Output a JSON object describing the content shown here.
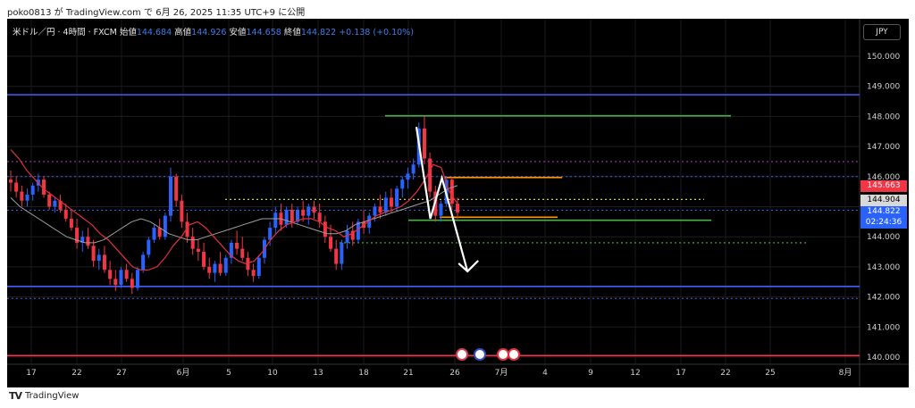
{
  "header": {
    "text": "poko0813 が TradingView.com で 6月 26, 2025 11:35 UTC+9 に公開"
  },
  "legend": {
    "symbol": "米ドル／円 · 4時間 · FXCM",
    "open_label": "始値",
    "open": "144.684",
    "high_label": "高値",
    "high": "144.926",
    "low_label": "安値",
    "low": "144.658",
    "close_label": "終値",
    "close": "144.822",
    "change": "+0.138 (+0.10%)"
  },
  "currency_button": "JPY",
  "footer": {
    "brand": "TradingView",
    "logo": "TV"
  },
  "colors": {
    "up": "#2962ff",
    "down": "#f23645",
    "background": "#000000",
    "blue_line": "#3f5fff",
    "green_line": "#4caf50",
    "orange_line": "#ff9800"
  },
  "price_tags": [
    {
      "value": "145.663",
      "bg": "#f23645"
    },
    {
      "value": "144.904",
      "bg": "#d9d9d9",
      "fg": "#000000"
    },
    {
      "value": "144.822",
      "bg": "#2962ff"
    },
    {
      "value": "02:24:36",
      "bg": "#2962ff"
    }
  ],
  "chart_data": {
    "type": "candlestick",
    "y_ticks": [
      "150.000",
      "149.000",
      "148.000",
      "147.000",
      "146.000",
      "145.000",
      "144.000",
      "143.000",
      "142.000",
      "141.000",
      "140.000"
    ],
    "ylim": [
      140,
      150.5
    ],
    "x_ticks": [
      "17",
      "22",
      "27",
      "6月",
      "5",
      "10",
      "13",
      "18",
      "21",
      "26",
      "7月",
      "4",
      "9",
      "12",
      "17",
      "22",
      "25",
      "8月"
    ],
    "grid": true,
    "horizontal_levels": [
      {
        "price": 148.72,
        "color": "#3f5fff",
        "style": "solid"
      },
      {
        "price": 142.35,
        "color": "#3f5fff",
        "style": "solid"
      },
      {
        "price": 146.0,
        "color": "#3f5fff",
        "style": "dotted"
      },
      {
        "price": 141.95,
        "color": "#3f5fff",
        "style": "dotted"
      },
      {
        "price": 146.5,
        "color": "#b040c0",
        "style": "dotted"
      },
      {
        "price": 144.88,
        "color": "#2962ff",
        "style": "dotted"
      },
      {
        "price": 140.05,
        "color": "#f23645",
        "style": "solid"
      }
    ],
    "segments": [
      {
        "x1": 431,
        "x2": 818,
        "price": 148.02,
        "color": "#4caf50",
        "style": "solid"
      },
      {
        "x1": 457,
        "x2": 796,
        "price": 144.55,
        "color": "#4caf50",
        "style": "solid"
      },
      {
        "x1": 497,
        "x2": 629,
        "price": 145.97,
        "color": "#ff9800",
        "style": "solid"
      },
      {
        "x1": 492,
        "x2": 624,
        "price": 144.65,
        "color": "#ff9800",
        "style": "solid"
      },
      {
        "x1": 252,
        "x2": 788,
        "price": 145.24,
        "color": "#c8d040",
        "style": "dotted"
      },
      {
        "x1": 380,
        "x2": 905,
        "price": 143.8,
        "color": "#4caf50",
        "style": "dotted"
      }
    ],
    "candles": [
      [
        145.9,
        146.2,
        145.5,
        145.8
      ],
      [
        145.8,
        146.0,
        145.3,
        145.5
      ],
      [
        145.5,
        145.7,
        145.0,
        145.2
      ],
      [
        145.2,
        145.6,
        145.0,
        145.4
      ],
      [
        145.4,
        145.8,
        145.2,
        145.7
      ],
      [
        145.7,
        146.1,
        145.5,
        145.9
      ],
      [
        145.9,
        146.0,
        145.3,
        145.4
      ],
      [
        145.4,
        145.5,
        144.9,
        145.0
      ],
      [
        145.0,
        145.3,
        144.8,
        145.2
      ],
      [
        145.2,
        145.4,
        144.8,
        144.9
      ],
      [
        144.9,
        145.1,
        144.5,
        144.6
      ],
      [
        144.6,
        144.9,
        144.2,
        144.3
      ],
      [
        144.3,
        144.6,
        143.6,
        143.8
      ],
      [
        143.8,
        144.2,
        143.5,
        144.0
      ],
      [
        144.0,
        144.3,
        143.6,
        143.7
      ],
      [
        143.7,
        143.9,
        143.0,
        143.2
      ],
      [
        143.2,
        143.6,
        142.9,
        143.4
      ],
      [
        143.4,
        143.7,
        142.8,
        142.9
      ],
      [
        142.9,
        143.2,
        142.4,
        142.6
      ],
      [
        142.6,
        142.9,
        142.2,
        142.4
      ],
      [
        142.4,
        143.0,
        142.3,
        142.9
      ],
      [
        142.9,
        143.1,
        142.5,
        142.6
      ],
      [
        142.6,
        142.8,
        142.1,
        142.3
      ],
      [
        142.3,
        143.0,
        142.2,
        142.9
      ],
      [
        142.9,
        143.5,
        142.8,
        143.4
      ],
      [
        143.4,
        144.0,
        143.3,
        143.9
      ],
      [
        143.9,
        144.4,
        143.8,
        144.3
      ],
      [
        144.3,
        144.6,
        143.9,
        144.0
      ],
      [
        144.0,
        144.8,
        143.9,
        144.7
      ],
      [
        144.7,
        146.3,
        144.5,
        146.0
      ],
      [
        146.0,
        146.1,
        145.0,
        145.2
      ],
      [
        145.2,
        145.4,
        144.3,
        144.5
      ],
      [
        144.5,
        144.8,
        143.8,
        144.0
      ],
      [
        144.0,
        144.3,
        143.4,
        143.6
      ],
      [
        143.6,
        143.9,
        143.2,
        143.5
      ],
      [
        143.5,
        143.8,
        142.9,
        143.0
      ],
      [
        143.0,
        143.3,
        142.6,
        142.8
      ],
      [
        142.8,
        143.2,
        142.5,
        143.1
      ],
      [
        143.1,
        143.5,
        142.7,
        142.8
      ],
      [
        142.8,
        143.4,
        142.7,
        143.3
      ],
      [
        143.3,
        143.9,
        143.1,
        143.8
      ],
      [
        143.8,
        144.2,
        143.4,
        143.6
      ],
      [
        143.6,
        144.0,
        143.2,
        143.3
      ],
      [
        143.3,
        143.5,
        142.7,
        142.9
      ],
      [
        142.9,
        143.1,
        142.5,
        142.7
      ],
      [
        142.7,
        143.4,
        142.6,
        143.3
      ],
      [
        143.3,
        144.0,
        143.1,
        143.9
      ],
      [
        143.9,
        144.5,
        143.7,
        144.3
      ],
      [
        144.3,
        145.0,
        144.1,
        144.8
      ],
      [
        144.8,
        145.1,
        144.2,
        144.4
      ],
      [
        144.4,
        145.0,
        144.3,
        144.9
      ],
      [
        144.9,
        145.1,
        144.3,
        144.5
      ],
      [
        144.5,
        145.0,
        144.4,
        144.9
      ],
      [
        144.9,
        145.2,
        144.5,
        144.7
      ],
      [
        144.7,
        145.1,
        144.4,
        145.0
      ],
      [
        145.0,
        145.2,
        144.6,
        144.8
      ],
      [
        144.8,
        145.1,
        144.3,
        144.5
      ],
      [
        144.5,
        144.7,
        143.8,
        144.0
      ],
      [
        144.0,
        144.4,
        143.5,
        143.6
      ],
      [
        143.6,
        143.9,
        142.9,
        143.1
      ],
      [
        143.1,
        143.9,
        142.9,
        143.8
      ],
      [
        143.8,
        144.4,
        143.6,
        144.2
      ],
      [
        144.2,
        144.5,
        143.7,
        143.9
      ],
      [
        143.9,
        144.6,
        143.8,
        144.5
      ],
      [
        144.5,
        144.9,
        144.1,
        144.3
      ],
      [
        144.3,
        144.8,
        144.1,
        144.7
      ],
      [
        144.7,
        145.1,
        144.5,
        145.0
      ],
      [
        145.0,
        145.4,
        144.6,
        144.8
      ],
      [
        144.8,
        145.5,
        144.7,
        145.3
      ],
      [
        145.3,
        145.6,
        144.8,
        145.0
      ],
      [
        145.0,
        145.7,
        144.9,
        145.6
      ],
      [
        145.6,
        146.0,
        145.3,
        145.9
      ],
      [
        145.9,
        146.3,
        145.6,
        146.1
      ],
      [
        146.1,
        146.6,
        145.9,
        146.4
      ],
      [
        146.4,
        147.8,
        146.3,
        147.6
      ],
      [
        147.6,
        148.0,
        146.4,
        146.6
      ],
      [
        146.6,
        146.8,
        145.3,
        145.5
      ],
      [
        145.5,
        145.7,
        144.5,
        144.7
      ],
      [
        144.7,
        145.2,
        144.5,
        145.1
      ],
      [
        145.1,
        146.0,
        145.0,
        145.9
      ],
      [
        145.9,
        146.0,
        144.9,
        145.1
      ],
      [
        145.1,
        145.3,
        144.6,
        144.8
      ]
    ],
    "ma_red": [
      146.9,
      146.6,
      146.2,
      145.9,
      145.6,
      145.4,
      145.2,
      145.0,
      144.8,
      144.6,
      144.4,
      144.1,
      143.9,
      143.6,
      143.3,
      143.0,
      142.9,
      142.9,
      143.0,
      143.3,
      143.7,
      144.0,
      144.4,
      144.5,
      144.3,
      144.0,
      143.7,
      143.4,
      143.2,
      143.1,
      143.2,
      143.5,
      143.9,
      144.2,
      144.4,
      144.5,
      144.6,
      144.6,
      144.5,
      144.3,
      144.2,
      144.0,
      144.1,
      144.3,
      144.5,
      144.7,
      144.8,
      144.9,
      145.0,
      145.2,
      145.5,
      145.9,
      146.4,
      146.3,
      145.5,
      145.1
    ],
    "ma_gray": [
      145.3,
      145.0,
      144.8,
      144.6,
      144.4,
      144.2,
      144.0,
      143.9,
      143.8,
      143.8,
      143.9,
      144.1,
      144.3,
      144.5,
      144.6,
      144.5,
      144.3,
      144.1,
      144.0,
      143.9,
      143.9,
      144.0,
      144.1,
      144.2,
      144.3,
      144.4,
      144.5,
      144.6,
      144.6,
      144.6,
      144.5,
      144.4,
      144.3,
      144.2,
      144.1,
      144.1,
      144.2,
      144.4,
      144.5,
      144.6,
      144.7,
      144.8,
      144.9,
      145.0,
      145.1,
      145.2,
      145.4,
      145.6,
      145.7
    ],
    "projection": [
      [
        146.0,
        147.65
      ],
      [
        146.12,
        144.6
      ],
      [
        146.22,
        145.95
      ],
      [
        146.44,
        142.85
      ]
    ]
  }
}
